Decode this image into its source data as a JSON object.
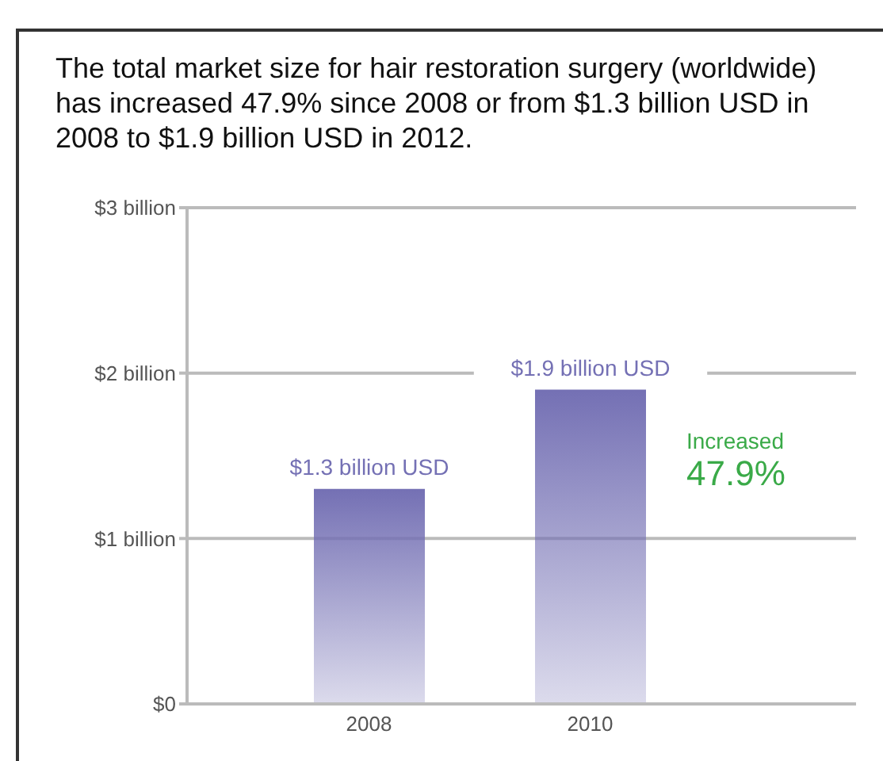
{
  "chart_data": {
    "type": "bar",
    "title": "The total market size for hair restoration surgery (worldwide) has increased 47.9% since 2008 or from $1.3 billion USD in 2008 to $1.9 billion USD in 2012.",
    "categories": [
      "2008",
      "2010"
    ],
    "values": [
      1.3,
      1.9
    ],
    "value_labels": [
      "$1.3 billion USD",
      "$1.9 billion USD"
    ],
    "color": "#7470b4",
    "ylim": [
      0,
      3
    ],
    "yticks": [
      {
        "value": 0,
        "label": "$0"
      },
      {
        "value": 1,
        "label": "$1 billion"
      },
      {
        "value": 2,
        "label": "$2 billion"
      },
      {
        "value": 3,
        "label": "$3 billion"
      }
    ],
    "grid": "y",
    "annotations": [
      "Increased",
      "47.9%"
    ]
  }
}
